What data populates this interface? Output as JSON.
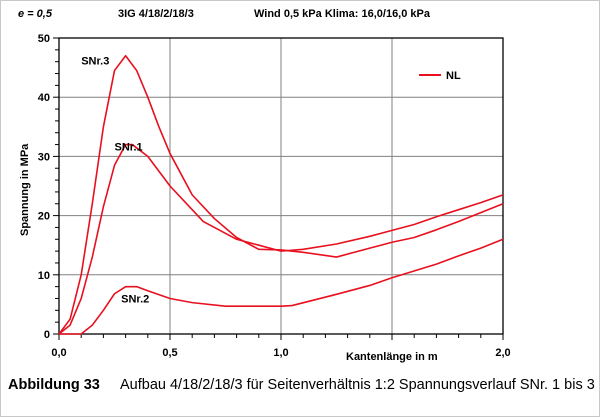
{
  "header": {
    "e_label": "e = 0,5",
    "config": "3IG  4/18/2/18/3",
    "conditions": "Wind 0,5 kPa  Klima: 16,0/16,0 kPa"
  },
  "caption": {
    "label": "Abbildung 33",
    "text": "Aufbau 4/18/2/18/3 für Seitenverhältnis 1:2 Spannungsverlauf SNr. 1 bis 3"
  },
  "chart_data": {
    "type": "line",
    "xlabel": "Kantenlänge in m",
    "ylabel": "Spannung  in MPa",
    "xlim": [
      0,
      2.0
    ],
    "ylim": [
      0,
      50
    ],
    "x_ticks": [
      "0,0",
      "0,5",
      "1,0",
      "2,0"
    ],
    "x_tick_values": [
      0,
      0.5,
      1.0,
      2.0
    ],
    "y_ticks": [
      "0",
      "10",
      "20",
      "30",
      "40",
      "50"
    ],
    "y_tick_values": [
      0,
      10,
      20,
      30,
      40,
      50
    ],
    "grid": true,
    "legend": {
      "entries": [
        "NL"
      ],
      "position": "top-right"
    },
    "color": "#e8101e",
    "series": [
      {
        "name": "SNr.3",
        "points": [
          [
            0,
            0
          ],
          [
            0.05,
            2.5
          ],
          [
            0.1,
            10
          ],
          [
            0.15,
            22
          ],
          [
            0.2,
            35
          ],
          [
            0.25,
            44.5
          ],
          [
            0.3,
            47
          ],
          [
            0.35,
            44.5
          ],
          [
            0.4,
            40
          ],
          [
            0.45,
            35
          ],
          [
            0.5,
            30.5
          ],
          [
            0.6,
            23.5
          ],
          [
            0.7,
            19.5
          ],
          [
            0.8,
            16.3
          ],
          [
            0.9,
            14.3
          ],
          [
            1.0,
            14.2
          ],
          [
            1.1,
            13.8
          ],
          [
            1.25,
            13
          ],
          [
            1.4,
            14.5
          ],
          [
            1.5,
            15.5
          ],
          [
            1.6,
            16.3
          ],
          [
            1.7,
            17.6
          ],
          [
            1.8,
            19
          ],
          [
            1.9,
            20.5
          ],
          [
            2.0,
            22
          ]
        ]
      },
      {
        "name": "SNr.1",
        "points": [
          [
            0,
            0
          ],
          [
            0.05,
            1.5
          ],
          [
            0.1,
            6
          ],
          [
            0.15,
            13
          ],
          [
            0.2,
            21.5
          ],
          [
            0.25,
            28.5
          ],
          [
            0.3,
            32
          ],
          [
            0.33,
            32
          ],
          [
            0.4,
            30
          ],
          [
            0.5,
            25
          ],
          [
            0.6,
            21
          ],
          [
            0.65,
            19
          ],
          [
            0.7,
            18
          ],
          [
            0.8,
            16
          ],
          [
            0.9,
            15
          ],
          [
            1.0,
            14
          ],
          [
            1.1,
            14.3
          ],
          [
            1.25,
            15.2
          ],
          [
            1.4,
            16.5
          ],
          [
            1.5,
            17.5
          ],
          [
            1.6,
            18.5
          ],
          [
            1.7,
            19.8
          ],
          [
            1.8,
            21
          ],
          [
            1.9,
            22.2
          ],
          [
            2.0,
            23.5
          ]
        ]
      },
      {
        "name": "SNr.2",
        "points": [
          [
            0,
            0
          ],
          [
            0.1,
            0
          ],
          [
            0.15,
            1.5
          ],
          [
            0.2,
            4
          ],
          [
            0.25,
            6.8
          ],
          [
            0.3,
            8
          ],
          [
            0.35,
            8
          ],
          [
            0.4,
            7.3
          ],
          [
            0.5,
            6
          ],
          [
            0.6,
            5.3
          ],
          [
            0.75,
            4.7
          ],
          [
            1.0,
            4.7
          ],
          [
            1.05,
            4.8
          ],
          [
            1.25,
            6.7
          ],
          [
            1.4,
            8.2
          ],
          [
            1.5,
            9.5
          ],
          [
            1.7,
            11.8
          ],
          [
            1.8,
            13.2
          ],
          [
            1.9,
            14.5
          ],
          [
            2.0,
            16
          ]
        ]
      }
    ],
    "annotations": [
      {
        "text": "SNr.3",
        "x": 0.1,
        "y": 45.5
      },
      {
        "text": "SNr.1",
        "x": 0.25,
        "y": 31
      },
      {
        "text": "SNr.2",
        "x": 0.28,
        "y": 5.3
      }
    ]
  }
}
